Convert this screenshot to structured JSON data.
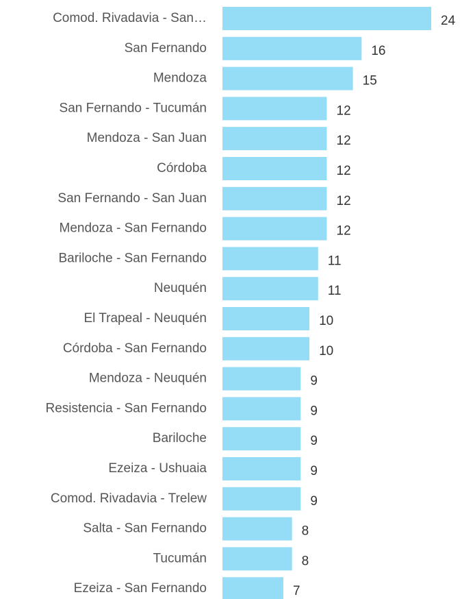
{
  "chart_data": {
    "type": "barh",
    "categories": [
      "Comod. Rivadavia - San…",
      "San Fernando",
      "Mendoza",
      "San Fernando - Tucumán",
      "Mendoza - San Juan",
      "Córdoba",
      "San Fernando - San Juan",
      "Mendoza - San Fernando",
      "Bariloche - San Fernando",
      "Neuquén",
      "El Trapeal - Neuquén",
      "Córdoba - San Fernando",
      "Mendoza - Neuquén",
      "Resistencia - San Fernando",
      "Bariloche",
      "Ezeiza - Ushuaia",
      "Comod. Rivadavia - Trelew",
      "Salta - San Fernando",
      "Tucumán",
      "Ezeiza - San Fernando"
    ],
    "values": [
      24,
      16,
      15,
      12,
      12,
      12,
      12,
      12,
      11,
      11,
      10,
      10,
      9,
      9,
      9,
      9,
      9,
      8,
      8,
      7
    ],
    "color": "#95dcf7",
    "xlim": [
      0,
      24
    ]
  }
}
